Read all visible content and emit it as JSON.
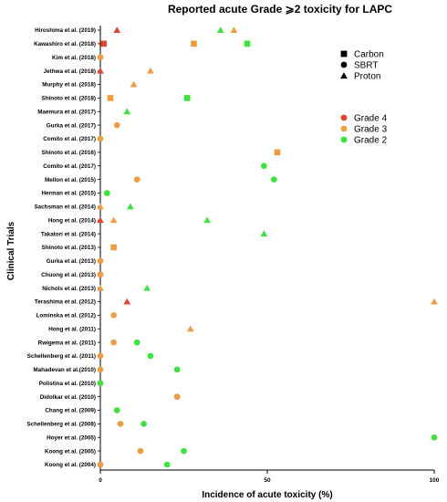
{
  "chart_data": {
    "type": "scatter",
    "title": "Reported acute Grade ⩾2 toxicity for LAPC",
    "xlabel": "Incidence of acute toxicity (%)",
    "ylabel": "Clinical Trials",
    "xlim": [
      0,
      100
    ],
    "xticks": [
      0,
      50,
      100
    ],
    "grid": false,
    "legend_position": "top-right",
    "colors": {
      "Grade 4": "#e8422b",
      "Grade 3": "#f59a3a",
      "Grade 2": "#37e637"
    },
    "legend": {
      "modalities": [
        {
          "name": "Carbon",
          "symbol": "square"
        },
        {
          "name": "SBRT",
          "symbol": "circle"
        },
        {
          "name": "Proton",
          "symbol": "triangle"
        }
      ],
      "grades": [
        "Grade 4",
        "Grade 3",
        "Grade 2"
      ]
    },
    "points": [
      {
        "label": "Hiroshima et al. (2019)",
        "value": 5,
        "modality": "Proton",
        "grade": "Grade 4"
      },
      {
        "label": "Hiroshima et al. (2019)",
        "value": 40,
        "modality": "Proton",
        "grade": "Grade 3"
      },
      {
        "label": "Hiroshima et al. (2019)",
        "value": 36,
        "modality": "Proton",
        "grade": "Grade 2"
      },
      {
        "label": "Kawashiro et al. (2018)",
        "value": 1,
        "modality": "Carbon",
        "grade": "Grade 4"
      },
      {
        "label": "Kawashiro et al. (2018)",
        "value": 28,
        "modality": "Carbon",
        "grade": "Grade 3"
      },
      {
        "label": "Kawashiro et al. (2018)",
        "value": 44,
        "modality": "Carbon",
        "grade": "Grade 2"
      },
      {
        "label": "Kim et al. (2018)",
        "value": 0,
        "modality": "SBRT",
        "grade": "Grade 3"
      },
      {
        "label": "Jethwa et al. (2018)",
        "value": 0,
        "modality": "Proton",
        "grade": "Grade 4"
      },
      {
        "label": "Jethwa et al. (2018)",
        "value": 15,
        "modality": "Proton",
        "grade": "Grade 3"
      },
      {
        "label": "Murphy et al. (2018)",
        "value": 10,
        "modality": "Proton",
        "grade": "Grade 3"
      },
      {
        "label": "Shinoto et al. (2018)",
        "value": 3,
        "modality": "Carbon",
        "grade": "Grade 3"
      },
      {
        "label": "Shinoto et al. (2018)",
        "value": 26,
        "modality": "Carbon",
        "grade": "Grade 2"
      },
      {
        "label": "Maemura et al. (2017)",
        "value": 8,
        "modality": "Proton",
        "grade": "Grade 2"
      },
      {
        "label": "Gurka et al. (2017)",
        "value": 5,
        "modality": "SBRT",
        "grade": "Grade 3"
      },
      {
        "label": "Comito et al. (2017)",
        "value": 0,
        "modality": "SBRT",
        "grade": "Grade 3"
      },
      {
        "label": "Shinoto et al. (2016)",
        "value": 53,
        "modality": "Carbon",
        "grade": "Grade 3"
      },
      {
        "label": "Comito et al. (2017)",
        "value": 49,
        "modality": "SBRT",
        "grade": "Grade 2"
      },
      {
        "label": "Mellon et al. (2015)",
        "value": 11,
        "modality": "SBRT",
        "grade": "Grade 3"
      },
      {
        "label": "Mellon et al. (2015)",
        "value": 52,
        "modality": "SBRT",
        "grade": "Grade 2"
      },
      {
        "label": "Herman et al. (2015)",
        "value": 2,
        "modality": "SBRT",
        "grade": "Grade 3"
      },
      {
        "label": "Herman et al. (2015)",
        "value": 2,
        "modality": "SBRT",
        "grade": "Grade 2"
      },
      {
        "label": "Sachsman et al. (2014)",
        "value": 0,
        "modality": "Proton",
        "grade": "Grade 3"
      },
      {
        "label": "Sachsman et al. (2014)",
        "value": 9,
        "modality": "Proton",
        "grade": "Grade 2"
      },
      {
        "label": "Hong et al. (2014)",
        "value": 0,
        "modality": "Proton",
        "grade": "Grade 4"
      },
      {
        "label": "Hong et al. (2014)",
        "value": 4,
        "modality": "Proton",
        "grade": "Grade 3"
      },
      {
        "label": "Hong et al. (2014)",
        "value": 32,
        "modality": "Proton",
        "grade": "Grade 2"
      },
      {
        "label": "Takatori et al. (2014)",
        "value": 49,
        "modality": "Proton",
        "grade": "Grade 2"
      },
      {
        "label": "Shinoto et al. (2013)",
        "value": 4,
        "modality": "Carbon",
        "grade": "Grade 3"
      },
      {
        "label": "Gurka et al. (2013)",
        "value": 0,
        "modality": "SBRT",
        "grade": "Grade 3"
      },
      {
        "label": "Chuong et al. (2013)",
        "value": 0,
        "modality": "SBRT",
        "grade": "Grade 4"
      },
      {
        "label": "Chuong et al. (2013)",
        "value": 0,
        "modality": "SBRT",
        "grade": "Grade 3"
      },
      {
        "label": "Nichols et al. (2013)",
        "value": 0,
        "modality": "Proton",
        "grade": "Grade 3"
      },
      {
        "label": "Nichols et al. (2013)",
        "value": 14,
        "modality": "Proton",
        "grade": "Grade 2"
      },
      {
        "label": "Terashima et al. (2012)",
        "value": 8,
        "modality": "Proton",
        "grade": "Grade 4"
      },
      {
        "label": "Terashima et al. (2012)",
        "value": 100,
        "modality": "Proton",
        "grade": "Grade 3"
      },
      {
        "label": "Lominska et al. (2012)",
        "value": 4,
        "modality": "SBRT",
        "grade": "Grade 3"
      },
      {
        "label": "Hong et al. (2011)",
        "value": 27,
        "modality": "Proton",
        "grade": "Grade 3"
      },
      {
        "label": "Rwigema et al. (2011)",
        "value": 4,
        "modality": "SBRT",
        "grade": "Grade 3"
      },
      {
        "label": "Rwigema et al. (2011)",
        "value": 11,
        "modality": "SBRT",
        "grade": "Grade 2"
      },
      {
        "label": "Schellenberg et al. (2011)",
        "value": 0,
        "modality": "SBRT",
        "grade": "Grade 3"
      },
      {
        "label": "Schellenberg et al. (2011)",
        "value": 15,
        "modality": "SBRT",
        "grade": "Grade 2"
      },
      {
        "label": "Mahadevan et al.(2010)",
        "value": 0,
        "modality": "SBRT",
        "grade": "Grade 3"
      },
      {
        "label": "Mahadevan et al.(2010)",
        "value": 23,
        "modality": "SBRT",
        "grade": "Grade 2"
      },
      {
        "label": "Polistina et al. (2010)",
        "value": 0,
        "modality": "SBRT",
        "grade": "Grade 2"
      },
      {
        "label": "Didolkar et al. (2010)",
        "value": 23,
        "modality": "SBRT",
        "grade": "Grade 4"
      },
      {
        "label": "Didolkar et al. (2010)",
        "value": 23,
        "modality": "SBRT",
        "grade": "Grade 3"
      },
      {
        "label": "Chang et al. (2009)",
        "value": 5,
        "modality": "SBRT",
        "grade": "Grade 2"
      },
      {
        "label": "Schellenberg et al. (2008)",
        "value": 6,
        "modality": "SBRT",
        "grade": "Grade 3"
      },
      {
        "label": "Schellenberg et al. (2008)",
        "value": 13,
        "modality": "SBRT",
        "grade": "Grade 2"
      },
      {
        "label": "Hoyer et al. (2005)",
        "value": 100,
        "modality": "SBRT",
        "grade": "Grade 2"
      },
      {
        "label": "Koong et al. (2005)",
        "value": 12,
        "modality": "SBRT",
        "grade": "Grade 3"
      },
      {
        "label": "Koong et al. (2005)",
        "value": 25,
        "modality": "SBRT",
        "grade": "Grade 2"
      },
      {
        "label": "Koong et al. (2004)",
        "value": 0,
        "modality": "SBRT",
        "grade": "Grade 3"
      },
      {
        "label": "Koong et al. (2004)",
        "value": 20,
        "modality": "SBRT",
        "grade": "Grade 2"
      }
    ]
  }
}
